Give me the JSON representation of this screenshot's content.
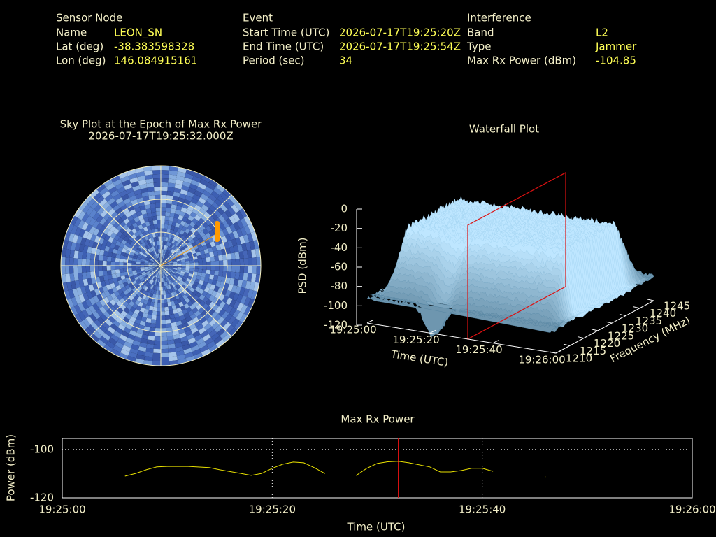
{
  "header": {
    "sensor_node": {
      "title": "Sensor Node",
      "rows": [
        [
          "Name",
          "LEON_SN"
        ],
        [
          "Lat (deg)",
          "-38.383598328"
        ],
        [
          "Lon (deg)",
          "146.084915161"
        ]
      ]
    },
    "event": {
      "title": "Event",
      "rows": [
        [
          "Start Time (UTC)",
          "2026-07-17T19:25:20Z"
        ],
        [
          "End Time (UTC)",
          "2026-07-17T19:25:54Z"
        ],
        [
          "Period (sec)",
          "34"
        ]
      ]
    },
    "interference": {
      "title": "Interference",
      "rows": [
        [
          "Band",
          "L2"
        ],
        [
          "Type",
          "Jammer"
        ],
        [
          "Max Rx Power (dBm)",
          "-104.85"
        ]
      ]
    }
  },
  "chart_data": [
    {
      "type": "polar",
      "title": "Sky Plot at the Epoch of Max Rx Power",
      "subtitle": "2026-07-17T19:25:32.000Z"
    },
    {
      "type": "surface",
      "title": "Waterfall Plot",
      "xlabel": "Time (UTC)",
      "ylabel": "Frequency (MHz)",
      "zlabel": "PSD (dBm)",
      "xlim": [
        "19:25:00",
        "19:26:00"
      ],
      "xticks": [
        "19:25:00",
        "19:25:20",
        "19:25:40",
        "19:26:00"
      ],
      "ylim": [
        1210,
        1245
      ],
      "yticks": [
        1210,
        1215,
        1220,
        1225,
        1230,
        1235,
        1240,
        1245
      ],
      "zlim": [
        -120,
        0
      ],
      "zticks": [
        0,
        -20,
        -40,
        -60,
        -80,
        -100,
        -120
      ]
    },
    {
      "type": "line",
      "title": "Max Rx Power",
      "xlabel": "Time (UTC)",
      "ylabel": "Power (dBm)",
      "color": "#e8e000",
      "grid": true,
      "xlim": [
        "19:25:00",
        "19:26:00"
      ],
      "xticks": [
        "19:25:00",
        "19:25:20",
        "19:25:40",
        "19:26:00"
      ],
      "ylim": [
        -120,
        -95.4
      ],
      "yticks": [
        -100,
        -120
      ],
      "x": [
        "19:25:06",
        "19:25:07",
        "19:25:08",
        "19:25:09",
        "19:25:10",
        "19:25:12",
        "19:25:14",
        "19:25:15",
        "19:25:17",
        "19:25:18",
        "19:25:19",
        "19:25:20",
        "19:25:21",
        "19:25:22",
        "19:25:23",
        "19:25:24",
        "19:25:25",
        "19:25:26",
        "19:25:28",
        "19:25:29",
        "19:25:30",
        "19:25:31",
        "19:25:32",
        "19:25:33",
        "19:25:35",
        "19:25:36",
        "19:25:37",
        "19:25:38",
        "19:25:39",
        "19:25:40",
        "19:25:41",
        "19:25:42",
        "19:25:46"
      ],
      "values": [
        -111,
        -109.9,
        -108.4,
        -107.2,
        -107,
        -107,
        -107.5,
        -108.4,
        -109.9,
        -110.7,
        -109.9,
        -107.8,
        -106.1,
        -105.2,
        -105.5,
        -107.5,
        -109.9,
        null,
        -110.7,
        -107.8,
        -105.8,
        -105.1,
        -104.85,
        -105.5,
        -107.2,
        -109.3,
        -109.3,
        -108.7,
        -107.8,
        -107.8,
        -109,
        null,
        -111.3
      ]
    }
  ]
}
